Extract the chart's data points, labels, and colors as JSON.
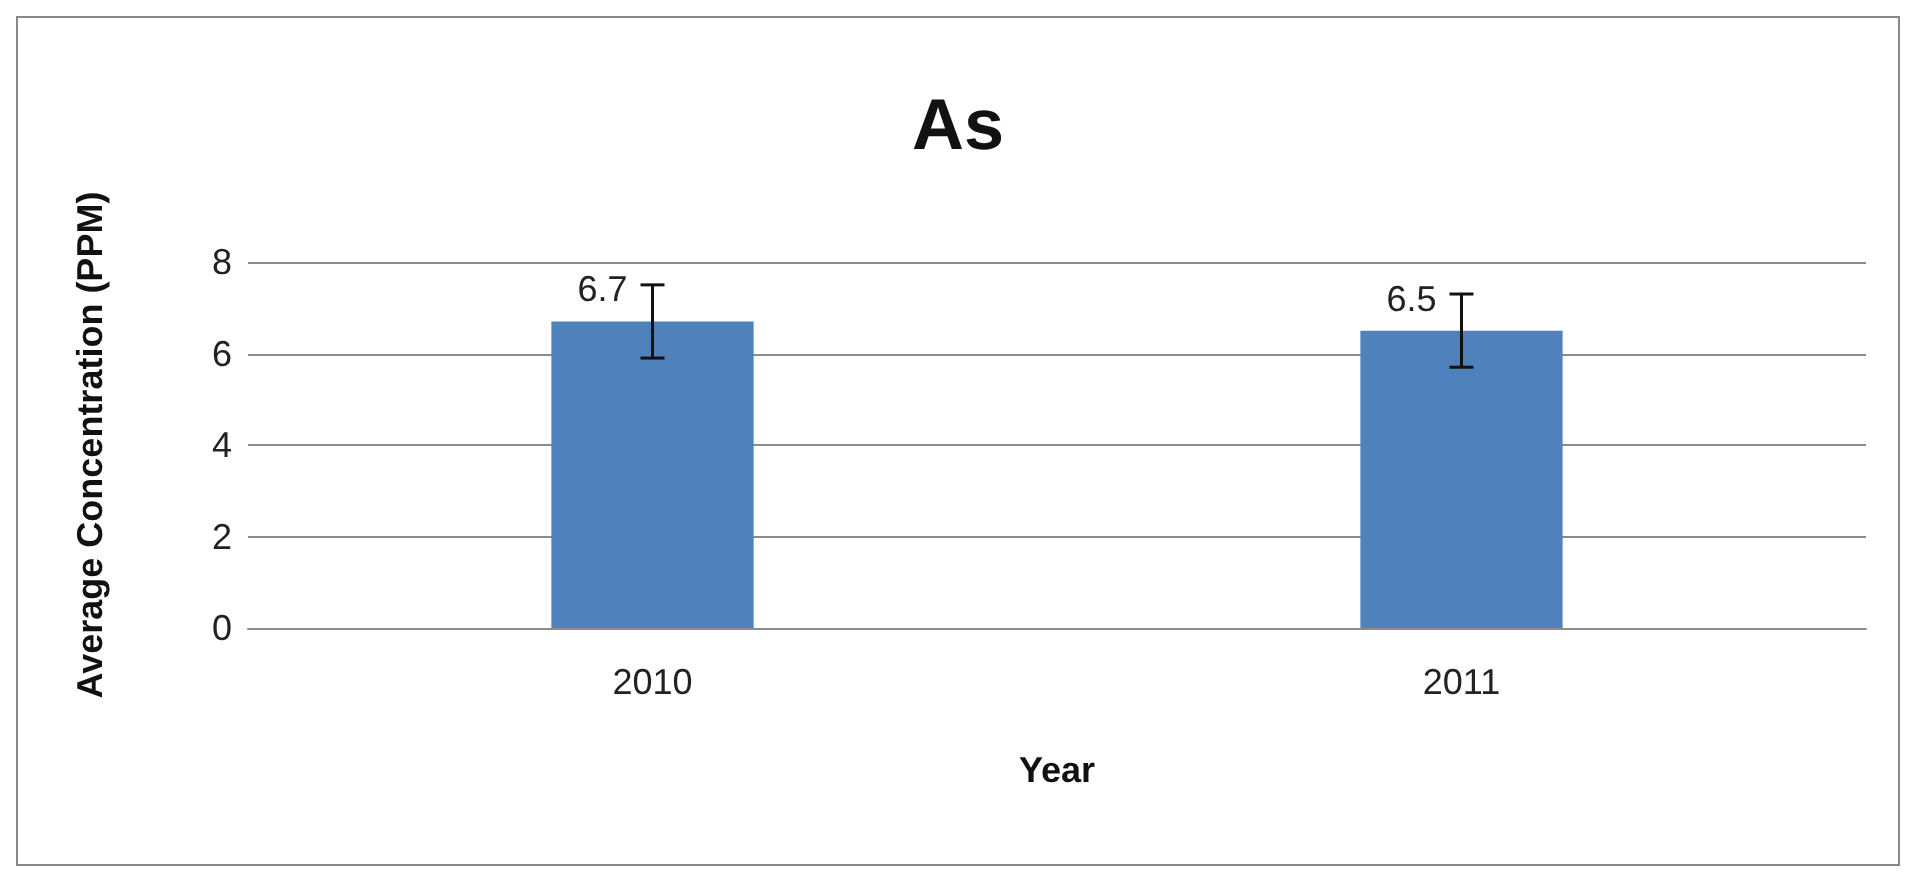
{
  "chart_data": {
    "type": "bar",
    "title": "As",
    "xlabel": "Year",
    "ylabel": "Average Concentration (PPM)",
    "categories": [
      "2010",
      "2011"
    ],
    "values": [
      6.7,
      6.5
    ],
    "errors": [
      0.8,
      0.8
    ],
    "color": "#4f81bd",
    "ylim": [
      0,
      8
    ],
    "yticks": [
      0,
      2,
      4,
      6,
      8
    ],
    "grid": "y",
    "data_labels": true
  }
}
